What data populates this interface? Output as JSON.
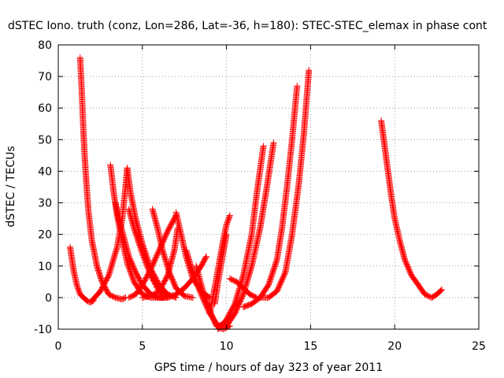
{
  "chart_data": {
    "type": "scatter",
    "title": "dSTEC Iono. truth (conz, Lon=286, Lat=-36, h=180): STEC-STEC_elemax in phase cont",
    "xlabel": "GPS time / hours of day 323 of year 2011",
    "ylabel": "dSTEC  / TECUs",
    "xlim": [
      0,
      25
    ],
    "ylim": [
      -10,
      80
    ],
    "xticks": [
      "0",
      "5",
      "10",
      "15",
      "20",
      "25"
    ],
    "yticks": [
      "-10",
      "0",
      "10",
      "20",
      "30",
      "40",
      "50",
      "60",
      "70",
      "80"
    ],
    "grid": true,
    "marker": "+",
    "color": "#ff0000",
    "series": [
      {
        "x": [
          0.7,
          0.9,
          1.1,
          1.3,
          1.5,
          1.7,
          1.9,
          2.1
        ],
        "y": [
          16,
          9,
          4,
          1,
          0,
          -1,
          -1.5,
          -1
        ]
      },
      {
        "x": [
          1.3,
          1.4,
          1.5,
          1.6,
          1.7,
          1.8,
          2.0,
          2.3,
          2.6,
          3.0,
          3.4,
          3.8,
          4.0
        ],
        "y": [
          76,
          65,
          52,
          42,
          34,
          27,
          18,
          10,
          5,
          1,
          0,
          -0.5,
          0
        ]
      },
      {
        "x": [
          2.0,
          2.5,
          3.0,
          3.5,
          3.8,
          4.0,
          4.1
        ],
        "y": [
          -1,
          2,
          7,
          16,
          25,
          35,
          41
        ]
      },
      {
        "x": [
          3.1,
          3.3,
          3.5,
          3.8,
          4.1,
          4.5,
          5.0,
          5.5,
          6.0,
          6.3
        ],
        "y": [
          42,
          33,
          26,
          18,
          11,
          5,
          1,
          0,
          0,
          0.5
        ]
      },
      {
        "x": [
          3.4,
          3.6,
          3.9,
          4.2,
          4.6,
          5.0,
          5.5,
          6.0,
          6.3
        ],
        "y": [
          30,
          25,
          19,
          13,
          8,
          4,
          1,
          0,
          0
        ]
      },
      {
        "x": [
          4.1,
          4.3,
          4.6,
          5.0,
          5.5,
          6.0,
          6.5,
          7.0
        ],
        "y": [
          41,
          33,
          25,
          17,
          9,
          4,
          1,
          0
        ]
      },
      {
        "x": [
          4.2,
          4.5,
          5.0,
          5.5,
          6.0,
          6.5
        ],
        "y": [
          28,
          22,
          14,
          7,
          2,
          0
        ]
      },
      {
        "x": [
          4.2,
          4.6,
          5.0,
          5.5,
          6.0,
          6.5,
          7.0
        ],
        "y": [
          0,
          1,
          4,
          9,
          15,
          21,
          26
        ]
      },
      {
        "x": [
          5.6,
          5.9,
          6.2,
          6.6,
          7.0,
          7.5,
          8.0
        ],
        "y": [
          28,
          22,
          15,
          8,
          3,
          0.5,
          0
        ]
      },
      {
        "x": [
          5.0,
          5.5,
          6.0,
          6.5,
          6.9,
          7.1
        ],
        "y": [
          0,
          0.5,
          2,
          7,
          15,
          22
        ]
      },
      {
        "x": [
          7.0,
          7.3,
          7.6,
          8.0,
          8.5,
          9.0
        ],
        "y": [
          27,
          20,
          13,
          6,
          2,
          0
        ]
      },
      {
        "x": [
          6.0,
          6.5,
          7.0,
          7.5,
          8.0,
          8.5,
          8.8
        ],
        "y": [
          0,
          0,
          1,
          3,
          6,
          10,
          13
        ]
      },
      {
        "x": [
          7.6,
          8.0,
          8.5,
          9.0,
          9.5,
          10.0
        ],
        "y": [
          15,
          8,
          1,
          -5,
          -9,
          -8
        ]
      },
      {
        "x": [
          8.2,
          8.6,
          9.0,
          9.4,
          9.8,
          10.2
        ],
        "y": [
          10,
          2,
          -4,
          -9,
          -10,
          -9
        ]
      },
      {
        "x": [
          9.0,
          9.3,
          9.6,
          9.8,
          10.0,
          10.2
        ],
        "y": [
          -5,
          3,
          12,
          18,
          23,
          26
        ]
      },
      {
        "x": [
          9.3,
          9.5,
          9.8,
          10.0
        ],
        "y": [
          -2,
          5,
          14,
          20
        ]
      },
      {
        "x": [
          9.5,
          10.0,
          10.5,
          11.0,
          11.5,
          11.8,
          12.2
        ],
        "y": [
          -10,
          -7,
          -2,
          7,
          20,
          33,
          48
        ]
      },
      {
        "x": [
          10.0,
          10.5,
          11.0,
          11.5,
          12.0,
          12.4,
          12.8
        ],
        "y": [
          -9,
          -5,
          1,
          10,
          22,
          35,
          49
        ]
      },
      {
        "x": [
          10.2,
          10.6,
          11.0,
          11.4,
          11.8
        ],
        "y": [
          6,
          5,
          3,
          1,
          0
        ]
      },
      {
        "x": [
          11.0,
          11.5,
          12.0,
          12.5,
          13.0,
          13.3,
          13.6,
          13.9,
          14.2
        ],
        "y": [
          -3,
          -2,
          0,
          4,
          12,
          22,
          35,
          50,
          67
        ]
      },
      {
        "x": [
          12.0,
          12.5,
          13.0,
          13.5,
          13.9,
          14.3,
          14.6,
          14.9
        ],
        "y": [
          0,
          0,
          2,
          8,
          20,
          36,
          52,
          72
        ]
      },
      {
        "x": [
          19.2,
          19.4,
          19.6,
          19.8,
          20.0,
          20.3,
          20.6,
          21.0,
          21.4,
          21.8,
          22.2,
          22.5,
          22.8
        ],
        "y": [
          56,
          48,
          40,
          32,
          25,
          18,
          12,
          7,
          4,
          1,
          0,
          1,
          2.5
        ]
      }
    ]
  }
}
